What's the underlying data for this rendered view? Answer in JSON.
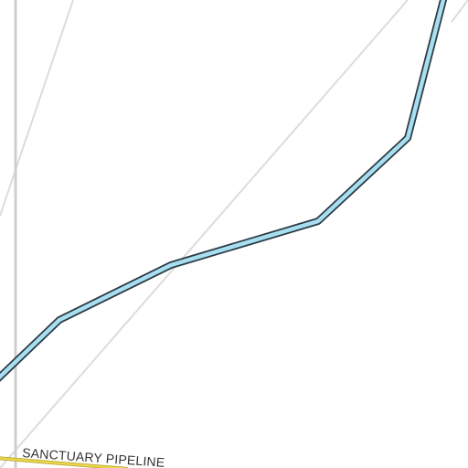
{
  "map": {
    "labels": {
      "pipeline": "SANCTUARY PIPELINE"
    },
    "colors": {
      "background": "#ffffff",
      "minor_road": "#dcdcdc",
      "vertical_road": "#cfcfcf",
      "waterway_fill": "#a8dff0",
      "waterway_casing": "#2b3a44",
      "pipeline": "#e8d54a",
      "label_text": "#333333"
    },
    "features": [
      "minor-road",
      "waterway",
      "pipeline"
    ]
  }
}
